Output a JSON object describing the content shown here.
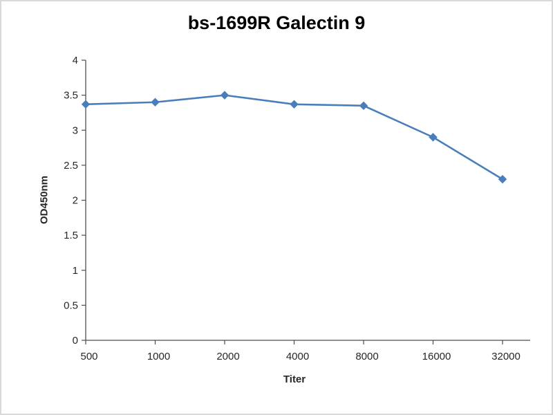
{
  "chart_data": {
    "type": "line",
    "title": "bs-1699R Galectin 9",
    "xlabel": "Titer",
    "ylabel": "OD450nm",
    "categories": [
      "500",
      "1000",
      "2000",
      "4000",
      "8000",
      "16000",
      "32000"
    ],
    "series": [
      {
        "name": "OD450nm",
        "values": [
          3.37,
          3.4,
          3.5,
          3.37,
          3.35,
          2.9,
          2.3
        ]
      }
    ],
    "ylim": [
      0,
      4
    ],
    "ytick_step": 0.5,
    "grid": false,
    "legend": "none",
    "marker": "diamond",
    "colors": {
      "line": "#4a7ebb",
      "marker": "#4a7ebb",
      "axis": "#4d4d4d",
      "tick_label": "#262626",
      "title": "#000000",
      "background": "#ffffff",
      "frame": "#d9d9d9"
    }
  }
}
